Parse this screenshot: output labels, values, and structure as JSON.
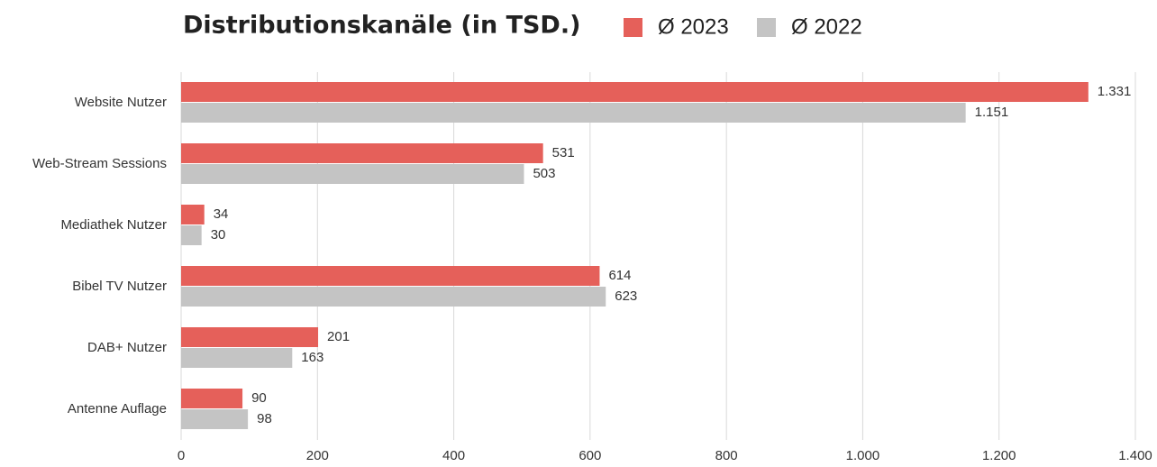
{
  "chart_data": {
    "type": "bar",
    "orientation": "horizontal",
    "title": "Distributionskanäle (in TSD.)",
    "categories": [
      "Website Nutzer",
      "Web-Stream Sessions",
      "Mediathek Nutzer",
      "Bibel TV Nutzer",
      "DAB+ Nutzer",
      "Antenne Auflage"
    ],
    "series": [
      {
        "name": "Ø 2023",
        "color": "#e5605a",
        "values": [
          1331,
          531,
          34,
          614,
          201,
          90
        ],
        "value_labels": [
          "1.331",
          "531",
          "34",
          "614",
          "201",
          "90"
        ]
      },
      {
        "name": "Ø 2022",
        "color": "#c4c4c4",
        "values": [
          1151,
          503,
          30,
          623,
          163,
          98
        ],
        "value_labels": [
          "1.151",
          "503",
          "30",
          "623",
          "163",
          "98"
        ]
      }
    ],
    "xlim": [
      0,
      1400
    ],
    "xticks": [
      0,
      200,
      400,
      600,
      800,
      {
        "value": 1000,
        "label": "1.000"
      },
      {
        "value": 1200,
        "label": "1.200"
      },
      {
        "value": 1400,
        "label": "1.400"
      }
    ],
    "grid": true
  }
}
